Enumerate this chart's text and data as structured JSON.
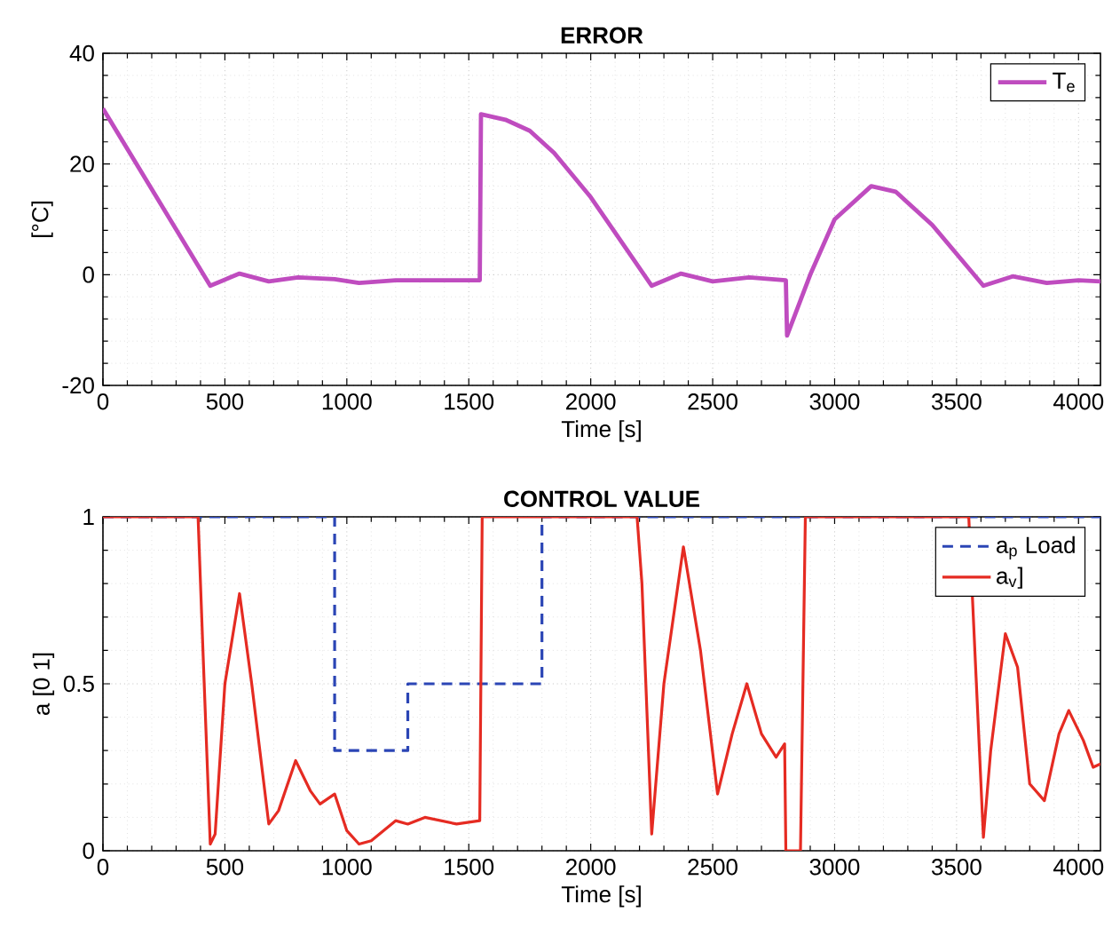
{
  "chart_data": [
    {
      "type": "line",
      "title": "ERROR",
      "xlabel": "Time [s]",
      "ylabel": "[°C]",
      "xlim": [
        0,
        4090
      ],
      "ylim": [
        -20,
        40
      ],
      "xticks": [
        0,
        500,
        1000,
        1500,
        2000,
        2500,
        3000,
        3500,
        4000
      ],
      "yticks": [
        -20,
        0,
        20,
        40
      ],
      "grid": true,
      "legend": "top right",
      "series": [
        {
          "name": "T$_{e}$",
          "color": "#bf4cbf",
          "line_style": "solid",
          "x": [
            0,
            440,
            560,
            680,
            800,
            950,
            1050,
            1200,
            1545,
            1550,
            1650,
            1750,
            1850,
            2000,
            2250,
            2370,
            2500,
            2650,
            2800,
            2805,
            2900,
            3000,
            3150,
            3250,
            3400,
            3610,
            3730,
            3870,
            4000,
            4090
          ],
          "values": [
            30,
            -2,
            0.2,
            -1.2,
            -0.5,
            -0.8,
            -1.5,
            -1,
            -1,
            29,
            28,
            26,
            22,
            14,
            -2,
            0.2,
            -1.2,
            -0.5,
            -1,
            -11,
            0,
            10,
            16,
            15,
            9,
            -2,
            -0.3,
            -1.5,
            -1,
            -1.2
          ]
        }
      ]
    },
    {
      "type": "line",
      "title": "CONTROL VALUE",
      "xlabel": "Time [s]",
      "ylabel": "a [0 1]",
      "xlim": [
        0,
        4090
      ],
      "ylim": [
        0,
        1
      ],
      "xticks": [
        0,
        500,
        1000,
        1500,
        2000,
        2500,
        3000,
        3500,
        4000
      ],
      "yticks": [
        0,
        0.5,
        1
      ],
      "grid": true,
      "legend": "top right",
      "series": [
        {
          "name": "a$_{p}$ Load",
          "color": "#2b45b5",
          "line_style": "dashed",
          "x": [
            0,
            950,
            950,
            1250,
            1250,
            1800,
            1800,
            4090
          ],
          "values": [
            1,
            1,
            0.3,
            0.3,
            0.5,
            0.5,
            1,
            1
          ]
        },
        {
          "name": "a$_{v}$]",
          "color": "#e52b22",
          "line_style": "solid",
          "x": [
            0,
            390,
            410,
            440,
            460,
            500,
            560,
            610,
            680,
            720,
            790,
            850,
            890,
            950,
            1000,
            1050,
            1100,
            1200,
            1250,
            1320,
            1450,
            1545,
            1555,
            2190,
            2210,
            2250,
            2300,
            2380,
            2450,
            2520,
            2580,
            2640,
            2700,
            2760,
            2795,
            2800,
            2860,
            2880,
            3550,
            3570,
            3610,
            3640,
            3700,
            3750,
            3800,
            3860,
            3920,
            3960,
            4020,
            4060,
            4090
          ],
          "values": [
            1,
            1,
            0.6,
            0.02,
            0.05,
            0.5,
            0.77,
            0.5,
            0.08,
            0.12,
            0.27,
            0.18,
            0.14,
            0.17,
            0.06,
            0.02,
            0.03,
            0.09,
            0.08,
            0.1,
            0.08,
            0.09,
            1,
            1,
            0.8,
            0.05,
            0.5,
            0.91,
            0.6,
            0.17,
            0.35,
            0.5,
            0.35,
            0.28,
            0.32,
            0,
            0,
            1,
            1,
            null,
            0.04,
            0.3,
            0.65,
            0.55,
            0.2,
            0.15,
            0.35,
            0.42,
            0.33,
            0.25,
            0.26
          ]
        }
      ]
    }
  ]
}
